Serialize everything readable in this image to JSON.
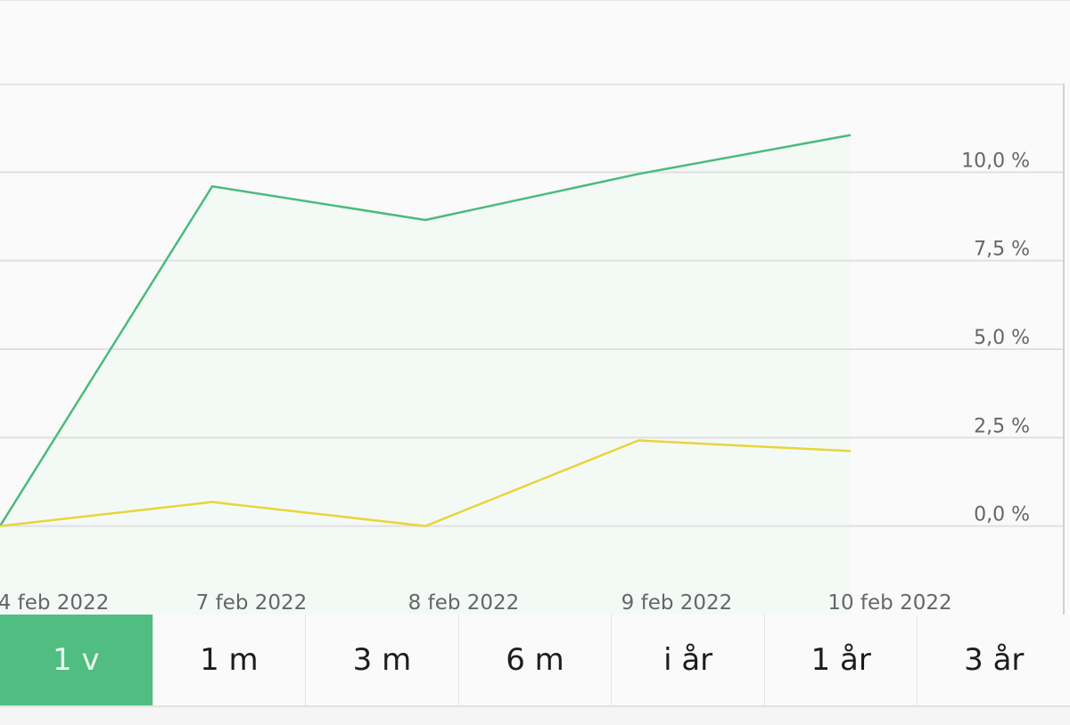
{
  "chart_data": {
    "type": "line",
    "categories": [
      "4 feb 2022",
      "7 feb 2022",
      "8 feb 2022",
      "9 feb 2022",
      "10 feb 2022"
    ],
    "series": [
      {
        "name": "green",
        "color": "#4dba7d",
        "values": [
          0.0,
          9.6,
          8.65,
          9.95,
          11.05
        ]
      },
      {
        "name": "yellow",
        "color": "#ead43a",
        "values": [
          0.0,
          0.68,
          0.0,
          2.42,
          2.12
        ]
      }
    ],
    "y_ticks": [
      0.0,
      2.5,
      5.0,
      7.5,
      10.0
    ],
    "y_tick_labels": [
      "0,0 %",
      "2,5 %",
      "5,0 %",
      "7,5 %",
      "10,0 %"
    ],
    "ylim": [
      -2.5,
      12.5
    ],
    "title": "",
    "xlabel": "",
    "ylabel": ""
  },
  "period_tabs": [
    {
      "label": "1 v",
      "active": true
    },
    {
      "label": "1 m",
      "active": false
    },
    {
      "label": "3 m",
      "active": false
    },
    {
      "label": "6 m",
      "active": false
    },
    {
      "label": "i år",
      "active": false
    },
    {
      "label": "1 år",
      "active": false
    },
    {
      "label": "3 år",
      "active": false
    }
  ],
  "colors": {
    "accent": "#51bd80",
    "fill": "#f3faf6",
    "grid": "#e0e0e0"
  }
}
